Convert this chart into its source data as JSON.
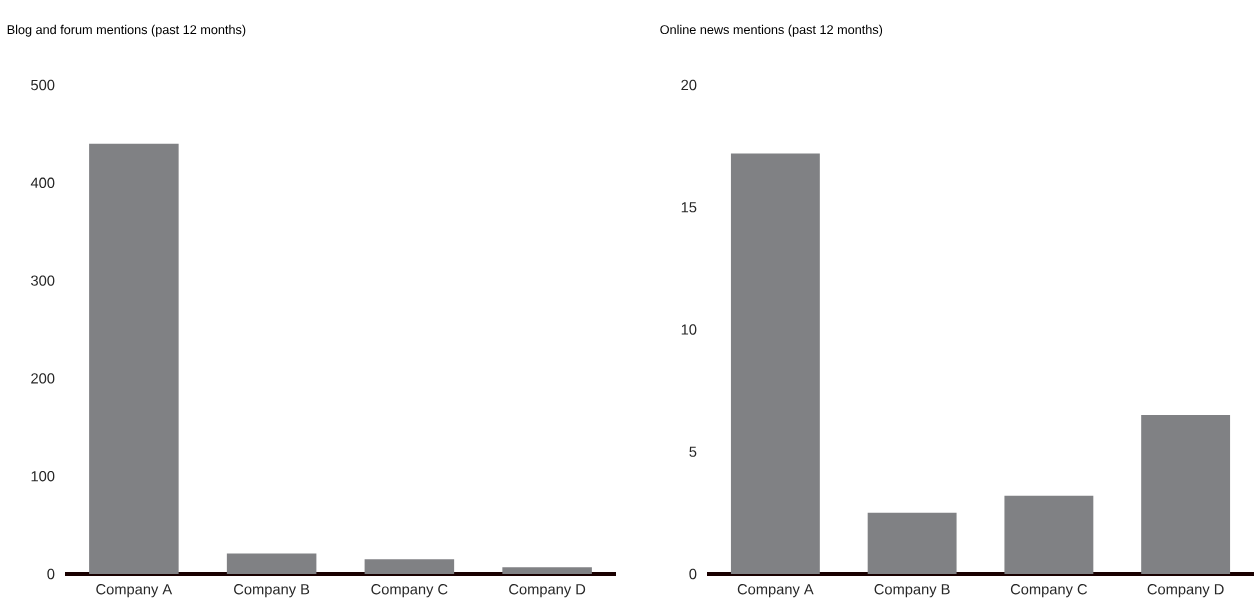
{
  "chart_data": [
    {
      "type": "bar",
      "title": "Blog and forum mentions (past 12 months)",
      "categories": [
        "Company A",
        "Company B",
        "Company C",
        "Company D"
      ],
      "values": [
        440,
        21,
        15,
        7
      ],
      "color": "#808184",
      "ylim": [
        0,
        500
      ],
      "yticks": [
        0,
        100,
        200,
        300,
        400,
        500
      ]
    },
    {
      "type": "bar",
      "title": "Online news mentions (past 12 months)",
      "categories": [
        "Company A",
        "Company B",
        "Company C",
        "Company D"
      ],
      "values": [
        17.2,
        2.5,
        3.2,
        6.5
      ],
      "color": "#808184",
      "ylim": [
        0,
        20
      ],
      "yticks": [
        0,
        5,
        10,
        15,
        20
      ]
    }
  ]
}
